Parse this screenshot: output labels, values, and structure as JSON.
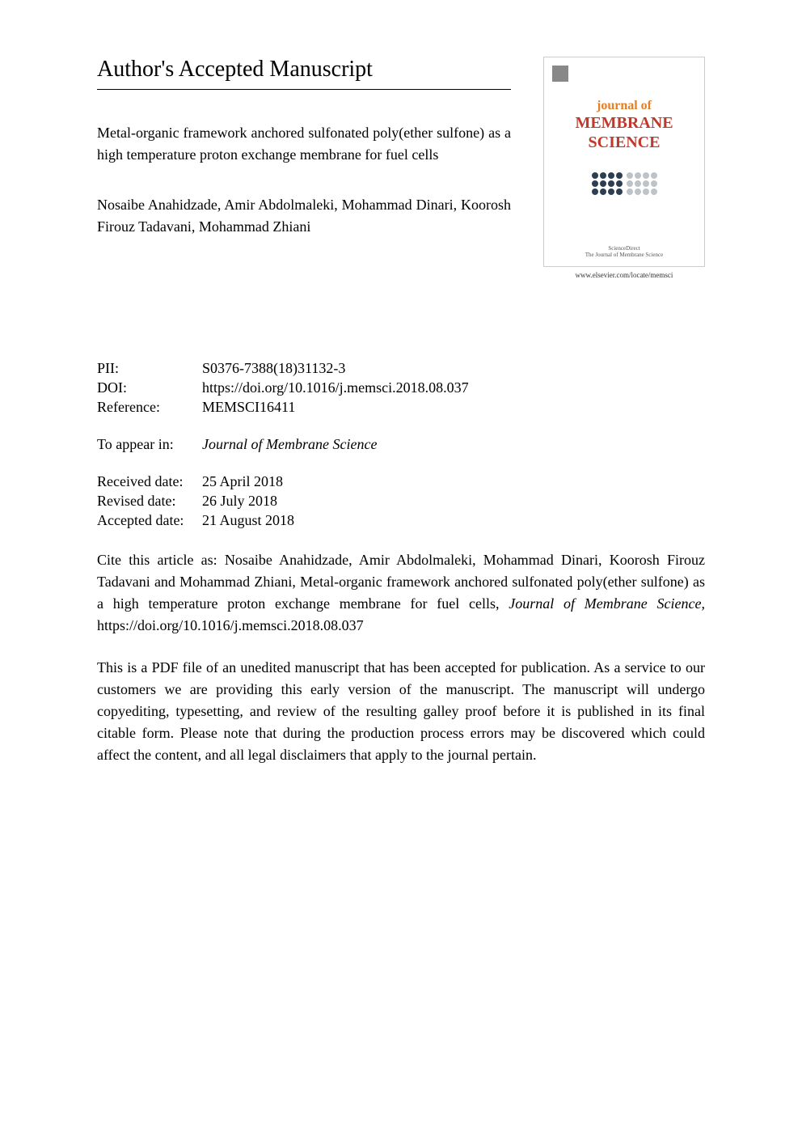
{
  "header": {
    "section_title": "Author's Accepted Manuscript",
    "article_title": "Metal-organic framework anchored sulfonated poly(ether sulfone) as a high temperature proton exchange membrane for fuel cells",
    "authors": "Nosaibe Anahidzade, Amir Abdolmaleki, Mohammad Dinari, Koorosh Firouz Tadavani, Mohammad Zhiani"
  },
  "cover": {
    "journal_of": "journal of",
    "membrane": "MEMBRANE",
    "science": "SCIENCE",
    "publisher_text": "ScienceDirect",
    "subtitle": "The Journal of Membrane Science",
    "url": "www.elsevier.com/locate/memsci",
    "colors": {
      "journal_of": "#e67e22",
      "title": "#c0392b",
      "border": "#cccccc"
    }
  },
  "metadata": {
    "pii_label": "PII:",
    "pii_value": "S0376-7388(18)31132-3",
    "doi_label": "DOI:",
    "doi_value": "https://doi.org/10.1016/j.memsci.2018.08.037",
    "reference_label": "Reference:",
    "reference_value": "MEMSCI16411"
  },
  "appear_in": {
    "label": "To appear in:",
    "value": "Journal of Membrane Science"
  },
  "dates": {
    "received_label": "Received date:",
    "received_value": "25 April 2018",
    "revised_label": "Revised date:",
    "revised_value": "26 July 2018",
    "accepted_label": "Accepted date:",
    "accepted_value": "21 August 2018"
  },
  "citation": {
    "prefix": "Cite this article as: Nosaibe Anahidzade, Amir Abdolmaleki, Mohammad Dinari, Koorosh Firouz Tadavani and Mohammad Zhiani, Metal-organic framework anchored sulfonated poly(ether sulfone) as a high temperature proton exchange membrane for fuel cells, ",
    "journal": "Journal of Membrane Science,",
    "suffix": " https://doi.org/10.1016/j.memsci.2018.08.037"
  },
  "disclaimer": "This is a PDF file of an unedited manuscript that has been accepted for publication. As a service to our customers we are providing this early version of the manuscript. The manuscript will undergo copyediting, typesetting, and review of the resulting galley proof before it is published in its final citable form. Please note that during the production process errors may be discovered which could affect the content, and all legal disclaimers that apply to the journal pertain."
}
